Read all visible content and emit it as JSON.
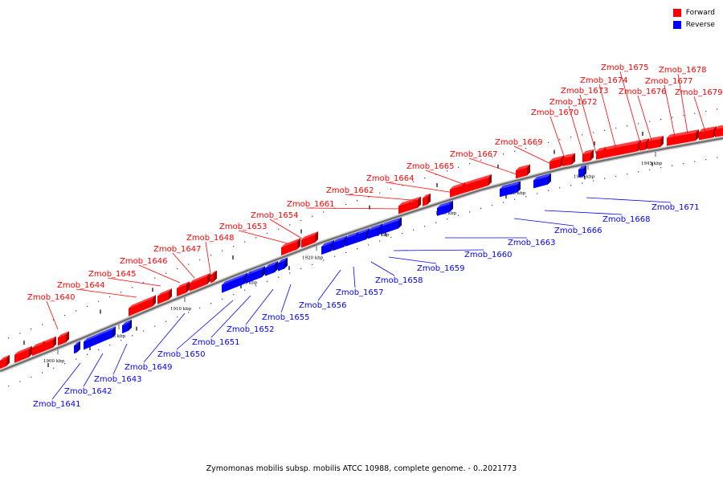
{
  "legend": {
    "forward": {
      "label": "Forward",
      "color": "#ff0000"
    },
    "reverse": {
      "label": "Reverse",
      "color": "#0000ff"
    }
  },
  "caption": "Zymomonas mobilis subsp. mobilis ATCC 10988, complete genome. - 0..2021773",
  "ticks": [
    {
      "label": "1900 kbp"
    },
    {
      "label": "1905 kbp"
    },
    {
      "label": "1910 kbp"
    },
    {
      "label": "1915 kbp"
    },
    {
      "label": "1920 kbp"
    },
    {
      "label": "1925 kbp"
    },
    {
      "label": "1930 kbp"
    },
    {
      "label": "1935 kbp"
    },
    {
      "label": "1940 kbp"
    },
    {
      "label": "1945 kbp"
    }
  ],
  "forward_labels": [
    "Zmob_1640",
    "Zmob_1644",
    "Zmob_1645",
    "Zmob_1646",
    "Zmob_1647",
    "Zmob_1648",
    "Zmob_1653",
    "Zmob_1654",
    "Zmob_1661",
    "Zmob_1662",
    "Zmob_1664",
    "Zmob_1665",
    "Zmob_1667",
    "Zmob_1669",
    "Zmob_1670",
    "Zmob_1672",
    "Zmob_1673",
    "Zmob_1674",
    "Zmob_1675",
    "Zmob_1676",
    "Zmob_1677",
    "Zmob_1678",
    "Zmob_1679"
  ],
  "reverse_labels": [
    "Zmob_1641",
    "Zmob_1642",
    "Zmob_1643",
    "Zmob_1649",
    "Zmob_1650",
    "Zmob_1651",
    "Zmob_1652",
    "Zmob_1655",
    "Zmob_1656",
    "Zmob_1657",
    "Zmob_1658",
    "Zmob_1659",
    "Zmob_1660",
    "Zmob_1663",
    "Zmob_1666",
    "Zmob_1668",
    "Zmob_1671"
  ]
}
